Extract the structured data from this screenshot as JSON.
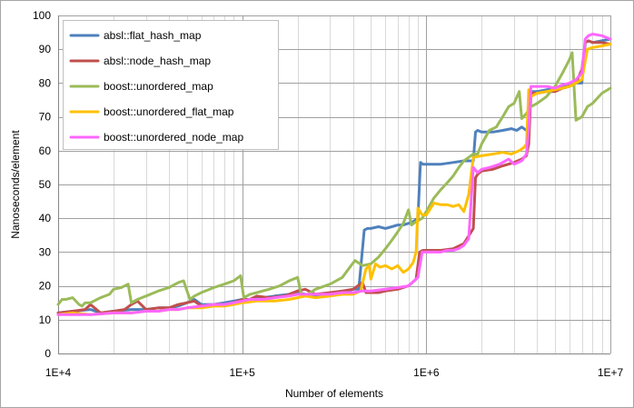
{
  "chart_data": {
    "type": "line",
    "title": "",
    "xlabel": "Number of elements",
    "ylabel": "Nanoseconds/element",
    "xscale": "log",
    "xlim": [
      10000,
      10000000
    ],
    "ylim": [
      0,
      100
    ],
    "yticks": [
      0,
      10,
      20,
      30,
      40,
      50,
      60,
      70,
      80,
      90,
      100
    ],
    "xticks": [
      10000,
      100000,
      1000000,
      10000000
    ],
    "xtick_labels": [
      "1E+4",
      "1E+5",
      "1E+6",
      "1E+7"
    ],
    "grid": "major and minor",
    "legend_position": "top-left",
    "series": [
      {
        "name": "absl::flat_hash_map",
        "color": "#4f81bd",
        "x": [
          10000,
          12000,
          15000,
          17000,
          20000,
          25000,
          30000,
          35000,
          40000,
          45000,
          50000,
          55000,
          60000,
          70000,
          80000,
          90000,
          100000,
          110000,
          130000,
          150000,
          180000,
          200000,
          220000,
          250000,
          300000,
          350000,
          400000,
          430000,
          460000,
          480000,
          500000,
          550000,
          600000,
          650000,
          700000,
          750000,
          800000,
          850000,
          900000,
          930000,
          960000,
          1000000,
          1100000,
          1200000,
          1400000,
          1600000,
          1800000,
          1850000,
          1900000,
          2000000,
          2300000,
          2600000,
          2900000,
          3100000,
          3300000,
          3500000,
          3600000,
          3700000,
          3800000,
          4000000,
          4500000,
          5000000,
          5500000,
          6000000,
          6500000,
          7000000,
          7300000,
          7600000,
          8000000,
          9000000,
          10000000
        ],
        "y": [
          12,
          12.5,
          13,
          12,
          12.5,
          13,
          13,
          13.5,
          13.5,
          14,
          15,
          16,
          14.5,
          14.5,
          15,
          15.5,
          16,
          16,
          16.5,
          17,
          17.5,
          18,
          17.5,
          17,
          17.5,
          18,
          19,
          19,
          36.5,
          37,
          37,
          37.5,
          37,
          37.5,
          38,
          38,
          38.5,
          39,
          40,
          56.5,
          56,
          56,
          56,
          56,
          56.5,
          57,
          57,
          65.5,
          66,
          65.5,
          65.5,
          66,
          66.5,
          66,
          67,
          66,
          67,
          77,
          77.5,
          77.5,
          78,
          78.5,
          79,
          79.5,
          80,
          80,
          92,
          92.5,
          92,
          92.5,
          93
        ]
      },
      {
        "name": "absl::node_hash_map",
        "color": "#c0504d",
        "x": [
          10000,
          12000,
          14000,
          15000,
          17000,
          20000,
          23000,
          25000,
          27000,
          30000,
          35000,
          40000,
          45000,
          50000,
          55000,
          60000,
          70000,
          80000,
          90000,
          100000,
          110000,
          120000,
          140000,
          170000,
          200000,
          220000,
          250000,
          300000,
          350000,
          400000,
          450000,
          470000,
          500000,
          550000,
          600000,
          700000,
          800000,
          880000,
          920000,
          960000,
          1000000,
          1100000,
          1200000,
          1400000,
          1600000,
          1800000,
          1850000,
          1900000,
          2000000,
          2300000,
          2600000,
          3000000,
          3300000,
          3500000,
          3600000,
          3700000,
          4000000,
          4500000,
          5000000,
          5500000,
          6000000,
          6500000,
          7000000,
          7300000,
          7600000,
          8000000,
          9000000,
          10000000
        ],
        "y": [
          12,
          12.5,
          13,
          14.5,
          12,
          12.5,
          13,
          14.5,
          15.5,
          13,
          13.5,
          13.5,
          14.5,
          15,
          15.5,
          14,
          14.5,
          14.5,
          15,
          16,
          16,
          17,
          16.5,
          17,
          18.5,
          19,
          17.5,
          18,
          18.5,
          19,
          21,
          18,
          18,
          18,
          18.5,
          19,
          20,
          22,
          30,
          30.5,
          30.5,
          30.5,
          30.5,
          31,
          32.5,
          37,
          52,
          53,
          54,
          54.5,
          55.5,
          56.5,
          57.5,
          58.5,
          62,
          77,
          77,
          77.5,
          77.5,
          78.5,
          79,
          80,
          84,
          92,
          92.5,
          92,
          92,
          91.5
        ]
      },
      {
        "name": "boost::unordered_map",
        "color": "#9bbb59",
        "x": [
          10000,
          10500,
          11000,
          12000,
          13000,
          13500,
          14000,
          15000,
          17000,
          19000,
          20000,
          22000,
          24000,
          25000,
          27000,
          30000,
          35000,
          40000,
          45000,
          48000,
          52000,
          55000,
          60000,
          70000,
          80000,
          90000,
          98000,
          102000,
          110000,
          120000,
          140000,
          160000,
          180000,
          200000,
          210000,
          220000,
          250000,
          300000,
          350000,
          390000,
          410000,
          450000,
          500000,
          550000,
          600000,
          650000,
          700000,
          750000,
          800000,
          830000,
          880000,
          950000,
          1000000,
          1100000,
          1200000,
          1300000,
          1400000,
          1500000,
          1600000,
          1700000,
          1800000,
          1900000,
          2000000,
          2200000,
          2400000,
          2600000,
          2800000,
          3000000,
          3200000,
          3300000,
          3500000,
          3700000,
          4000000,
          4500000,
          5000000,
          5500000,
          6000000,
          6200000,
          6500000,
          7000000,
          7500000,
          8000000,
          9000000,
          10000000
        ],
        "y": [
          14.5,
          16,
          16,
          16.5,
          14.5,
          14,
          15,
          15,
          16.5,
          17.5,
          19,
          19.5,
          20.5,
          15,
          16,
          17,
          18.5,
          19.5,
          21,
          21.5,
          16,
          17,
          18,
          19.5,
          20.5,
          21.5,
          23,
          16.5,
          17.5,
          18,
          19,
          20,
          21.5,
          22.5,
          17,
          17,
          19,
          20.5,
          22.5,
          26,
          27.5,
          26,
          26.5,
          28.5,
          31,
          33.5,
          36,
          38.5,
          42.5,
          38,
          39,
          40,
          42,
          46,
          48.5,
          50.5,
          52.5,
          55,
          57,
          58,
          59,
          59,
          62,
          66,
          67,
          70,
          73,
          74,
          77.5,
          69.5,
          71,
          73,
          74,
          76,
          79,
          83,
          87,
          89,
          69,
          70,
          73,
          74,
          77,
          78.5
        ]
      },
      {
        "name": "boost::unordered_flat_map",
        "color": "#ffc000",
        "x": [
          10000,
          12000,
          15000,
          20000,
          25000,
          30000,
          35000,
          40000,
          45000,
          50000,
          60000,
          70000,
          80000,
          90000,
          100000,
          120000,
          150000,
          180000,
          200000,
          220000,
          250000,
          300000,
          350000,
          400000,
          440000,
          470000,
          490000,
          500000,
          530000,
          560000,
          600000,
          650000,
          700000,
          750000,
          800000,
          850000,
          880000,
          900000,
          950000,
          1000000,
          1100000,
          1200000,
          1300000,
          1400000,
          1500000,
          1600000,
          1700000,
          1800000,
          2000000,
          2300000,
          2600000,
          2900000,
          3200000,
          3400000,
          3500000,
          3600000,
          3700000,
          4000000,
          4500000,
          5000000,
          5500000,
          6000000,
          6500000,
          7000000,
          7500000,
          8000000,
          9000000,
          10000000
        ],
        "y": [
          11.5,
          12,
          11.5,
          12,
          12,
          12.5,
          12.5,
          13,
          13,
          13.5,
          13.5,
          14,
          14,
          14.5,
          15,
          15.5,
          15.5,
          16,
          16.5,
          17,
          16.5,
          17,
          17.5,
          17.5,
          18.5,
          25,
          26,
          22,
          26.5,
          25.5,
          26,
          25,
          26,
          24,
          25,
          27,
          30,
          43,
          41,
          41,
          44.5,
          44,
          44,
          43.5,
          44,
          42,
          47,
          58,
          58.5,
          59,
          59.5,
          59,
          60,
          61,
          62,
          78,
          76,
          77,
          77.5,
          78,
          78.5,
          79,
          80,
          81,
          90,
          90.5,
          91,
          91.5
        ]
      },
      {
        "name": "boost::unordered_node_map",
        "color": "#ff66ff",
        "x": [
          10000,
          12000,
          15000,
          20000,
          25000,
          30000,
          35000,
          40000,
          45000,
          50000,
          60000,
          70000,
          80000,
          90000,
          100000,
          110000,
          130000,
          150000,
          180000,
          200000,
          220000,
          250000,
          300000,
          350000,
          400000,
          450000,
          500000,
          600000,
          700000,
          800000,
          900000,
          950000,
          1000000,
          1100000,
          1200000,
          1300000,
          1400000,
          1500000,
          1600000,
          1700000,
          1800000,
          1900000,
          2000000,
          2200000,
          2500000,
          2800000,
          3000000,
          3300000,
          3500000,
          3600000,
          3700000,
          4000000,
          4500000,
          5000000,
          5500000,
          6000000,
          6500000,
          7000000,
          7300000,
          7600000,
          8000000,
          9000000,
          10000000
        ],
        "y": [
          11.5,
          11.5,
          11.5,
          12,
          12,
          12.5,
          12.5,
          13,
          13,
          13.5,
          14,
          14.5,
          14.5,
          15,
          15.5,
          16,
          16,
          16.5,
          17,
          17.5,
          17.5,
          17.5,
          17.5,
          18,
          18,
          18.5,
          18.5,
          19,
          19.5,
          20,
          22.5,
          30,
          30,
          30,
          30,
          30.5,
          30.5,
          31,
          32,
          34,
          55,
          53.5,
          54.5,
          55,
          56,
          57.5,
          56,
          57,
          59,
          67,
          79,
          79,
          79,
          78.5,
          79.5,
          80,
          81,
          83,
          93,
          94,
          94.5,
          94,
          93
        ]
      }
    ]
  }
}
